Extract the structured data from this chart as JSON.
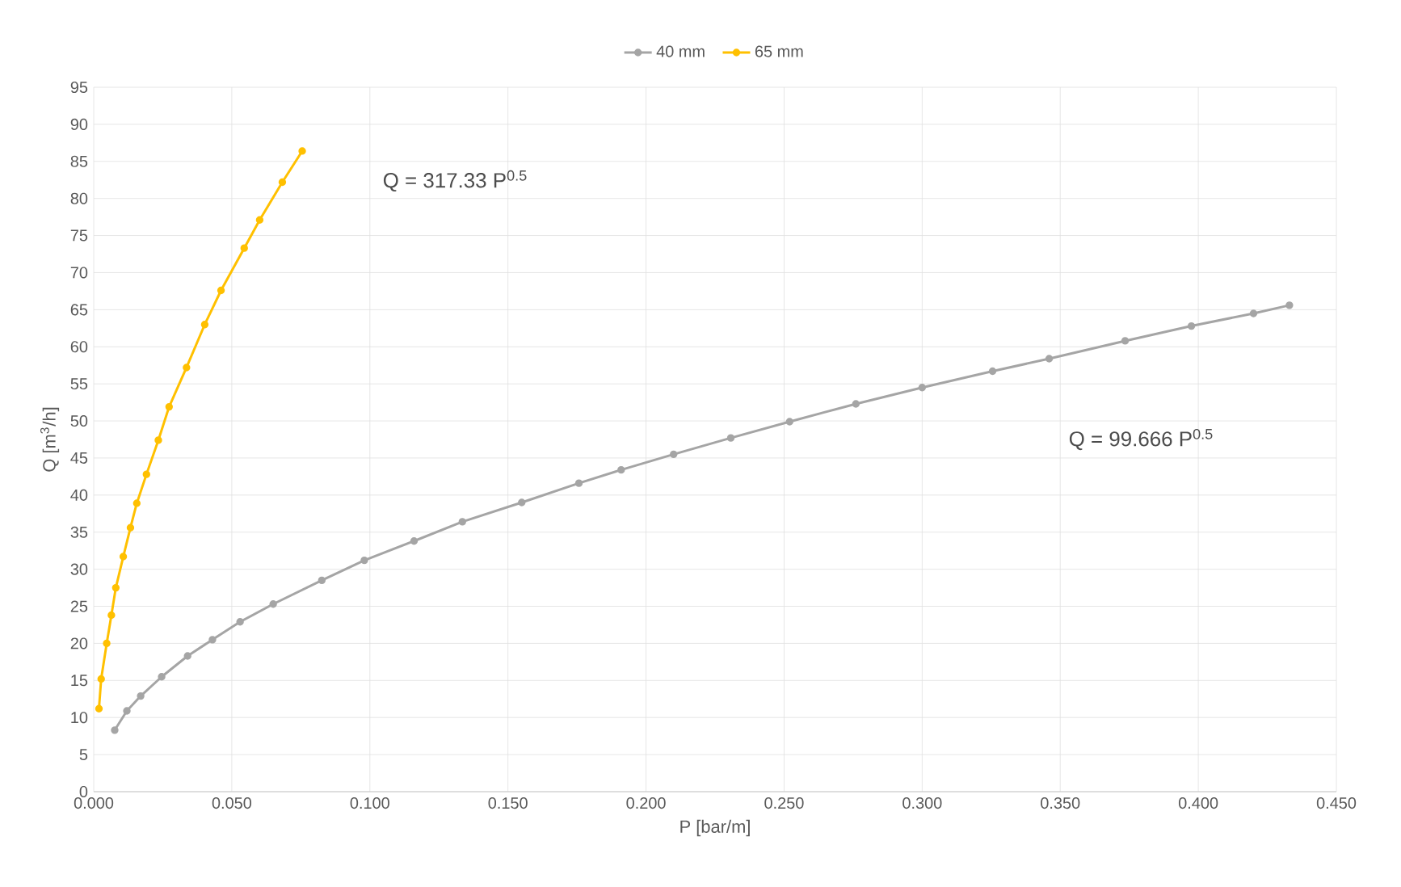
{
  "chart_data": {
    "type": "line",
    "xlabel": "P [bar/m]",
    "ylabel": "Q [m$^{3}$/h]",
    "series": [
      {
        "name": "40 mm",
        "color": "#a5a5a5",
        "x": [
          0.0076,
          0.012,
          0.017,
          0.0246,
          0.034,
          0.043,
          0.053,
          0.065,
          0.0826,
          0.098,
          0.116,
          0.1335,
          0.155,
          0.1757,
          0.191,
          0.21,
          0.2307,
          0.252,
          0.276,
          0.3,
          0.3255,
          0.346,
          0.3735,
          0.3975,
          0.42,
          0.433
        ],
        "values": [
          8.3,
          10.9,
          12.9,
          15.5,
          18.3,
          20.5,
          22.9,
          25.3,
          28.5,
          31.2,
          33.8,
          36.4,
          39.0,
          41.6,
          43.4,
          45.5,
          47.7,
          49.9,
          52.3,
          54.5,
          56.7,
          58.4,
          60.8,
          62.8,
          64.5,
          65.6
        ]
      },
      {
        "name": "65 mm",
        "color": "#ffc000",
        "x": [
          0.0019,
          0.0027,
          0.0047,
          0.0064,
          0.008,
          0.0107,
          0.0133,
          0.0156,
          0.0191,
          0.0234,
          0.0273,
          0.0336,
          0.0402,
          0.0461,
          0.0545,
          0.0601,
          0.0683,
          0.0755
        ],
        "values": [
          11.2,
          15.2,
          20.0,
          23.8,
          27.5,
          31.7,
          35.6,
          38.9,
          42.8,
          47.4,
          51.9,
          57.2,
          63.0,
          67.6,
          73.3,
          77.1,
          82.2,
          86.4
        ]
      }
    ],
    "xlim": [
      0,
      0.45
    ],
    "ylim": [
      0,
      95
    ],
    "xticks": [
      {
        "value": 0,
        "label": "0.000"
      },
      {
        "value": 0.05,
        "label": "0.050"
      },
      {
        "value": 0.1,
        "label": "0.100"
      },
      {
        "value": 0.15,
        "label": "0.150"
      },
      {
        "value": 0.2,
        "label": "0.200"
      },
      {
        "value": 0.25,
        "label": "0.250"
      },
      {
        "value": 0.3,
        "label": "0.300"
      },
      {
        "value": 0.35,
        "label": "0.350"
      },
      {
        "value": 0.4,
        "label": "0.400"
      },
      {
        "value": 0.45,
        "label": "0.450"
      }
    ],
    "yticks": [
      0,
      5,
      10,
      15,
      20,
      25,
      30,
      35,
      40,
      45,
      50,
      55,
      60,
      65,
      70,
      75,
      80,
      85,
      90,
      95
    ],
    "annotations": [
      "Q = 317.33 P$^{0.5}$",
      "Q = 99.666 P$^{0.5}$"
    ],
    "grid": true,
    "legend": "top",
    "marker": "circle",
    "line_style": "solid"
  }
}
